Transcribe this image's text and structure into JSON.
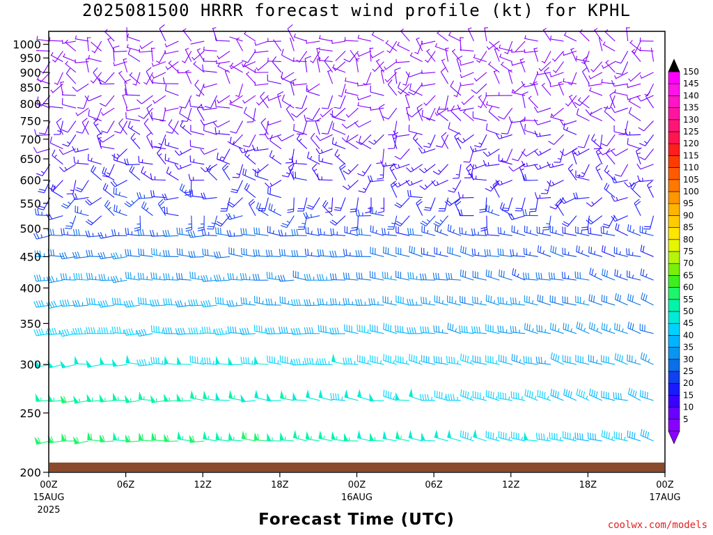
{
  "chart_data": {
    "type": "wind-barb time-height cross-section",
    "title": "2025081500 HRRR forecast wind profile (kt) for KPHL",
    "xlabel": "Forecast Time (UTC)",
    "ylabel": "",
    "y_axis": {
      "units": "hPa",
      "scale": "log-pressure",
      "range": [
        1050,
        200
      ],
      "ticks": [
        "200",
        "250",
        "300",
        "350",
        "400",
        "450",
        "500",
        "550",
        "600",
        "650",
        "700",
        "750",
        "800",
        "850",
        "900",
        "950",
        "1000"
      ]
    },
    "x_axis": {
      "range": [
        "2025-08-15 00Z",
        "2025-08-17 00Z"
      ],
      "ticks": [
        {
          "label": "00Z",
          "sub": "15AUG",
          "sub2": "2025",
          "hour": 0
        },
        {
          "label": "06Z",
          "sub": "",
          "sub2": "",
          "hour": 6
        },
        {
          "label": "12Z",
          "sub": "",
          "sub2": "",
          "hour": 12
        },
        {
          "label": "18Z",
          "sub": "",
          "sub2": "",
          "hour": 18
        },
        {
          "label": "00Z",
          "sub": "16AUG",
          "sub2": "",
          "hour": 24
        },
        {
          "label": "06Z",
          "sub": "",
          "sub2": "",
          "hour": 30
        },
        {
          "label": "12Z",
          "sub": "",
          "sub2": "",
          "hour": 36
        },
        {
          "label": "18Z",
          "sub": "",
          "sub2": "",
          "hour": 42
        },
        {
          "label": "00Z",
          "sub": "17AUG",
          "sub2": "",
          "hour": 48
        }
      ]
    },
    "barb_rows_hPa": [
      225,
      262,
      300,
      337,
      375,
      412,
      450,
      487,
      525,
      562,
      600,
      637,
      675,
      712,
      750,
      787,
      825,
      862,
      900,
      937,
      975,
      1012
    ],
    "barb_hour_step": 1,
    "colorbar": {
      "units": "kt",
      "levels": [
        5,
        10,
        15,
        20,
        25,
        30,
        35,
        40,
        45,
        50,
        55,
        60,
        65,
        70,
        75,
        80,
        85,
        90,
        95,
        100,
        105,
        110,
        115,
        120,
        125,
        130,
        135,
        140,
        145,
        150
      ],
      "colors": [
        "#8a00ff",
        "#6a00ff",
        "#3c00ff",
        "#1a1aff",
        "#1040f0",
        "#0a6fe8",
        "#0a96f0",
        "#00b4ff",
        "#00d2ff",
        "#00ecd8",
        "#00f5a8",
        "#1ef56a",
        "#3cf01e",
        "#78f00a",
        "#b4f50a",
        "#e6f500",
        "#ffe600",
        "#ffcc00",
        "#ffb400",
        "#ff9600",
        "#ff7800",
        "#ff5a00",
        "#ff3c00",
        "#ff1e1e",
        "#ff1450",
        "#ff1478",
        "#ff14a0",
        "#ff14c8",
        "#ff14e6",
        "#ff00ff"
      ],
      "top_arrow_color": "#000000",
      "bottom_arrow_color": "#8a00ff"
    },
    "terrain_color": "#8b4a2b",
    "grid": false,
    "legend": "colorbar at right"
  },
  "watermark": "coolwx.com/models"
}
